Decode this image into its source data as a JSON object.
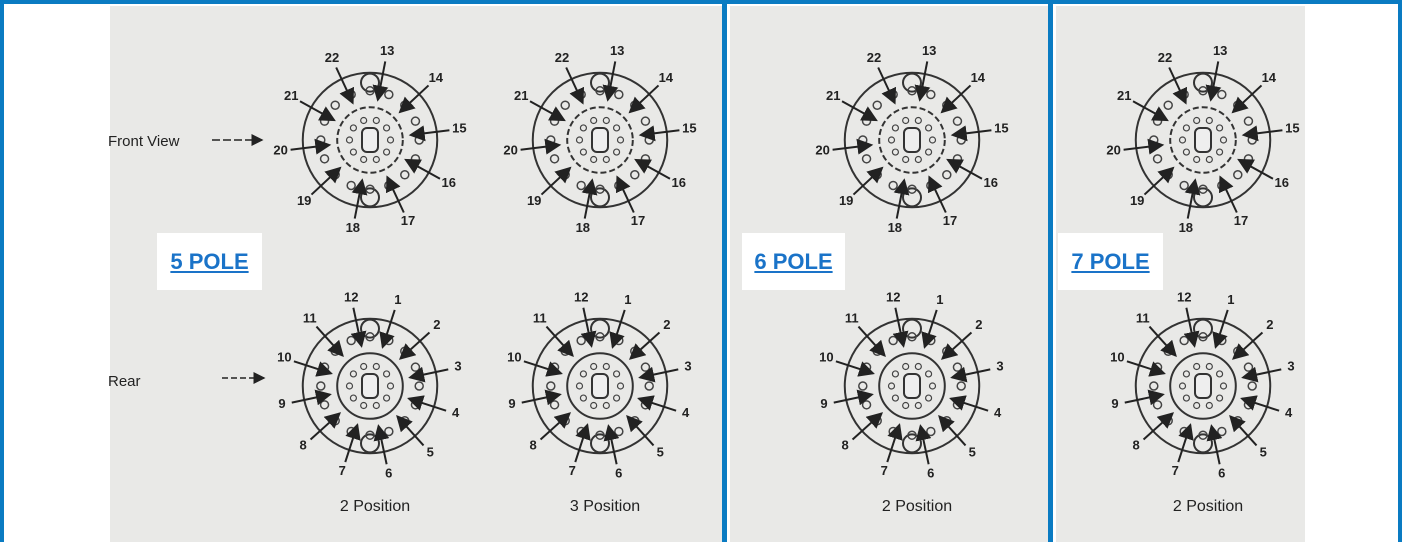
{
  "panels": [
    {
      "link": "5 POLE",
      "views": {
        "front": "Front View",
        "rear": "Rear"
      },
      "diagrams": [
        {
          "front_pins": [
            22,
            13,
            14,
            15,
            16,
            17,
            18,
            19,
            20,
            21
          ],
          "rear_pins": [
            12,
            1,
            2,
            3,
            4,
            5,
            6,
            7,
            8,
            9,
            10,
            11
          ],
          "caption": "2 Position"
        },
        {
          "front_pins": [
            22,
            13,
            14,
            15,
            16,
            17,
            18,
            19,
            20,
            21
          ],
          "rear_pins": [
            12,
            1,
            2,
            3,
            4,
            5,
            6,
            7,
            8,
            9,
            10,
            11
          ],
          "caption": "3 Position"
        }
      ]
    },
    {
      "link": "6 POLE",
      "diagrams": [
        {
          "front_pins": [
            22,
            13,
            14,
            15,
            16,
            17,
            18,
            19,
            20,
            21
          ],
          "rear_pins": [
            12,
            1,
            2,
            3,
            4,
            5,
            6,
            7,
            8,
            9,
            10,
            11
          ],
          "caption": "2 Position"
        }
      ]
    },
    {
      "link": "7 POLE",
      "diagrams": [
        {
          "front_pins": [
            22,
            13,
            14,
            15,
            16,
            17,
            18,
            19,
            20,
            21
          ],
          "rear_pins": [
            12,
            1,
            2,
            3,
            4,
            5,
            6,
            7,
            8,
            9,
            10,
            11
          ],
          "caption": "2 Position"
        }
      ]
    }
  ]
}
